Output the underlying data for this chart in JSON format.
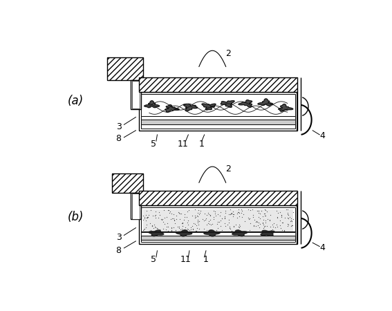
{
  "bg_color": "#ffffff",
  "line_color": "#000000",
  "fig_width": 5.67,
  "fig_height": 4.5,
  "dpi": 100,
  "label_a": "(a)",
  "label_b": "(b)"
}
